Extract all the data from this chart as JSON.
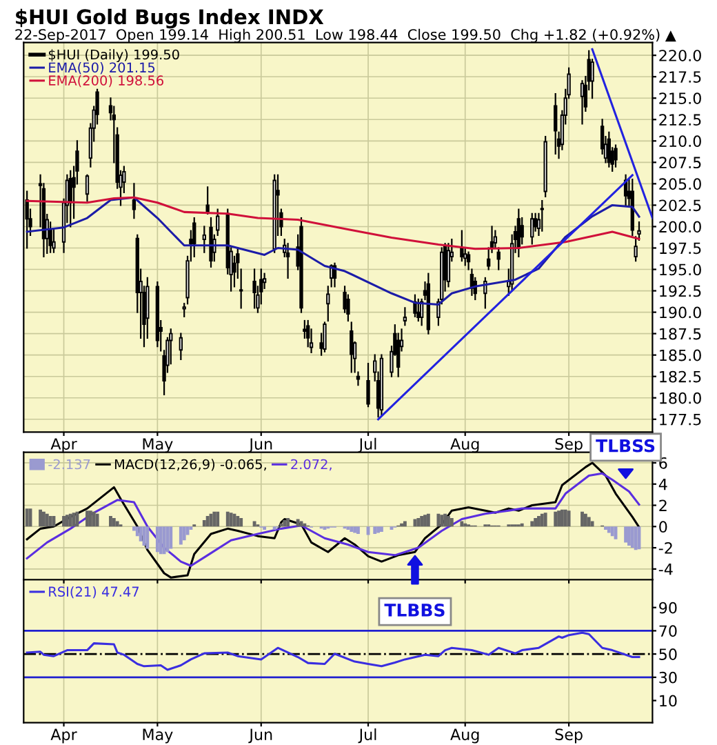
{
  "chart_data": [
    {
      "type": "candlestick",
      "title": "$HUI Gold Bugs Index INDX",
      "subtitle": "22-Sep-2017  Open 199.14  High 200.51  Low 198.44  Close 199.50  Chg +1.82 (+0.92%) ▲",
      "series": [
        {
          "type": "candlestick",
          "name": "$HUI (Daily) 199.50",
          "color": "#000000",
          "x": [
            "2017-03-23",
            "2017-03-24",
            "2017-03-27",
            "2017-03-28",
            "2017-03-29",
            "2017-03-30",
            "2017-03-31",
            "2017-04-03",
            "2017-04-04",
            "2017-04-05",
            "2017-04-06",
            "2017-04-07",
            "2017-04-10",
            "2017-04-11",
            "2017-04-12",
            "2017-04-13",
            "2017-04-17",
            "2017-04-18",
            "2017-04-19",
            "2017-04-20",
            "2017-04-21",
            "2017-04-24",
            "2017-04-25",
            "2017-04-26",
            "2017-04-27",
            "2017-04-28",
            "2017-05-01",
            "2017-05-02",
            "2017-05-03",
            "2017-05-04",
            "2017-05-05",
            "2017-05-08",
            "2017-05-09",
            "2017-05-10",
            "2017-05-11",
            "2017-05-12",
            "2017-05-15",
            "2017-05-16",
            "2017-05-17",
            "2017-05-18",
            "2017-05-19",
            "2017-05-22",
            "2017-05-23",
            "2017-05-24",
            "2017-05-25",
            "2017-05-26",
            "2017-05-30",
            "2017-05-31",
            "2017-06-01",
            "2017-06-02",
            "2017-06-05",
            "2017-06-06",
            "2017-06-07",
            "2017-06-08",
            "2017-06-09",
            "2017-06-12",
            "2017-06-13",
            "2017-06-14",
            "2017-06-15",
            "2017-06-16",
            "2017-06-19",
            "2017-06-20",
            "2017-06-21",
            "2017-06-22",
            "2017-06-23",
            "2017-06-26",
            "2017-06-27",
            "2017-06-28",
            "2017-06-29",
            "2017-06-30",
            "2017-07-03",
            "2017-07-05",
            "2017-07-06",
            "2017-07-07",
            "2017-07-10",
            "2017-07-11",
            "2017-07-12",
            "2017-07-13",
            "2017-07-14",
            "2017-07-17",
            "2017-07-18",
            "2017-07-19",
            "2017-07-20",
            "2017-07-21",
            "2017-07-24",
            "2017-07-25",
            "2017-07-26",
            "2017-07-27",
            "2017-07-28",
            "2017-07-31",
            "2017-08-01",
            "2017-08-02",
            "2017-08-03",
            "2017-08-04",
            "2017-08-07",
            "2017-08-08",
            "2017-08-09",
            "2017-08-10",
            "2017-08-11",
            "2017-08-14",
            "2017-08-15",
            "2017-08-16",
            "2017-08-17",
            "2017-08-18",
            "2017-08-21",
            "2017-08-22",
            "2017-08-23",
            "2017-08-24",
            "2017-08-25",
            "2017-08-28",
            "2017-08-29",
            "2017-08-30",
            "2017-08-31",
            "2017-09-01",
            "2017-09-05",
            "2017-09-06",
            "2017-09-07",
            "2017-09-08",
            "2017-09-11",
            "2017-09-12",
            "2017-09-13",
            "2017-09-14",
            "2017-09-15",
            "2017-09-18",
            "2017-09-19",
            "2017-09-20",
            "2017-09-21",
            "2017-09-22"
          ],
          "ohlc": [
            [
              203.1,
              204.1,
              197.5,
              200.9
            ],
            [
              200.9,
              202,
              199,
              200
            ],
            [
              205,
              206,
              200,
              204.8
            ],
            [
              204.4,
              205,
              196.5,
              198.6
            ],
            [
              198.6,
              201.4,
              196.9,
              200.8
            ],
            [
              199.6,
              200.5,
              197,
              197.8
            ],
            [
              197.5,
              199.6,
              197,
              198.2
            ],
            [
              198.2,
              203.2,
              197,
              202.8
            ],
            [
              202.5,
              206,
              200.5,
              205.4
            ],
            [
              205.6,
              206.5,
              200,
              202.8
            ],
            [
              205.7,
              207,
              201,
              204.6
            ],
            [
              208.8,
              210,
              205,
              206.5
            ],
            [
              203.8,
              206,
              203,
              205.9
            ],
            [
              208,
              212,
              207,
              211.5
            ],
            [
              211.5,
              214,
              210,
              213.6
            ],
            [
              215.7,
              216,
              212,
              213.1
            ],
            [
              214.1,
              215,
              212.5,
              213.3
            ],
            [
              213,
              214,
              207.5,
              212.5
            ],
            [
              210.7,
              211.5,
              204.5,
              205.2
            ],
            [
              204.6,
              206.5,
              202.5,
              206
            ],
            [
              205.2,
              207,
              204,
              206.4
            ],
            [
              203.1,
              205,
              201,
              202
            ],
            [
              198.6,
              199,
              190,
              192.3
            ],
            [
              192.3,
              195,
              187,
              193.6
            ],
            [
              192.3,
              193,
              186,
              188.6
            ],
            [
              189.3,
              194,
              187,
              193
            ],
            [
              193,
              193.5,
              186,
              186.7
            ],
            [
              188.2,
              189,
              185.5,
              187.8
            ],
            [
              184.9,
              185.5,
              180.4,
              182
            ],
            [
              183.8,
              187,
              183,
              186.7
            ],
            [
              186.7,
              188,
              184,
              187.5
            ],
            [
              185.6,
              187.5,
              184.5,
              187
            ],
            [
              190.4,
              191,
              189.5,
              190.6
            ],
            [
              191.7,
              196.5,
              191,
              196
            ],
            [
              198.5,
              199.5,
              196,
              198
            ],
            [
              200.4,
              201,
              196.5,
              198
            ],
            [
              198.5,
              200,
              197,
              199
            ],
            [
              202.5,
              204.6,
              201.5,
              201.7
            ],
            [
              199.9,
              201,
              195.3,
              196
            ],
            [
              197,
              199,
              196,
              198.5
            ],
            [
              199.6,
              202,
              199,
              201.2
            ],
            [
              201.5,
              202,
              194.5,
              195.2
            ],
            [
              194.4,
              197.5,
              192.5,
              197.1
            ],
            [
              195.7,
              196.5,
              193,
              194.7
            ],
            [
              196.8,
              197.5,
              194,
              195.8
            ],
            [
              192.5,
              195,
              190.5,
              192.6
            ],
            [
              193.6,
              195,
              190.5,
              192.3
            ],
            [
              190.5,
              193,
              190,
              192
            ],
            [
              193.8,
              195,
              191,
              192.4
            ],
            [
              193.5,
              194.5,
              192.8,
              193.9
            ],
            [
              197.4,
              206,
              197,
              205.4
            ],
            [
              204.2,
              206,
              199,
              203.7
            ],
            [
              201.6,
              202,
              199,
              200
            ],
            [
              197,
              198.5,
              196.5,
              197.8
            ],
            [
              196.9,
              198,
              194,
              196.5
            ],
            [
              197.6,
              199,
              195,
              195.4
            ],
            [
              200,
              201,
              190,
              190.5
            ],
            [
              188,
              189,
              187,
              187.8
            ],
            [
              188.4,
              189,
              186,
              187
            ],
            [
              185.9,
              188,
              185.3,
              186.4
            ],
            [
              186.4,
              187.5,
              185,
              185.8
            ],
            [
              185.7,
              188.8,
              185.4,
              188.6
            ],
            [
              191,
              193,
              189,
              192.1
            ],
            [
              194,
              195.5,
              193,
              195.4
            ],
            [
              195.4,
              195.7,
              193,
              194
            ],
            [
              192.3,
              193,
              190,
              190.4
            ],
            [
              191.5,
              192,
              189,
              189.8
            ],
            [
              187.8,
              188.8,
              183,
              185.1
            ],
            [
              184.6,
              186.5,
              183,
              186.4
            ],
            [
              182.5,
              183,
              181.5,
              182.2
            ],
            [
              182,
              184,
              179,
              179.3
            ],
            [
              183,
              185,
              182,
              184.3
            ],
            [
              182,
              183,
              177.8,
              178.8
            ],
            [
              178.6,
              185,
              178,
              184.6
            ],
            [
              183,
              186,
              182.5,
              185.4
            ],
            [
              187.5,
              188.5,
              185,
              185.1
            ],
            [
              186.7,
              187.5,
              182.5,
              183.6
            ],
            [
              186,
              188,
              185.5,
              186.7
            ],
            [
              189,
              190.5,
              188.5,
              189.4
            ],
            [
              191.2,
              192,
              189.5,
              189.9
            ],
            [
              190,
              191.5,
              189,
              189.4
            ],
            [
              189.4,
              191.5,
              188.5,
              191.2
            ],
            [
              192.5,
              193.5,
              191.5,
              192
            ],
            [
              193.3,
              194.5,
              187.5,
              188
            ],
            [
              189.4,
              191.5,
              188.5,
              191.2
            ],
            [
              191.5,
              197.5,
              191,
              197
            ],
            [
              197.8,
              198,
              192.5,
              193.8
            ],
            [
              193.6,
              198,
              193,
              197.2
            ],
            [
              196.5,
              198.5,
              196,
              197
            ],
            [
              197.5,
              199.5,
              196,
              196.5
            ],
            [
              196.3,
              197.5,
              195.5,
              196.8
            ],
            [
              196.7,
              197,
              195,
              195.9
            ],
            [
              194.4,
              195,
              192,
              192.8
            ],
            [
              193.6,
              194,
              191.5,
              192.2
            ],
            [
              192.2,
              194,
              190.5,
              193.6
            ],
            [
              196.2,
              197.5,
              195,
              195.4
            ],
            [
              198.2,
              200,
              197,
              197.5
            ],
            [
              198.1,
              199.5,
              197.5,
              198.8
            ],
            [
              197,
              197.5,
              195,
              196.2
            ],
            [
              193,
              195,
              192,
              193.6
            ],
            [
              193.3,
              199,
              192.5,
              198
            ],
            [
              199.4,
              200,
              197,
              198.5
            ],
            [
              200.9,
              202,
              196.5,
              197.5
            ],
            [
              200.1,
              201,
              198,
              198.8
            ],
            [
              198.8,
              201.5,
              198,
              200.9
            ],
            [
              200.9,
              201.5,
              199.5,
              200
            ],
            [
              199.8,
              201.5,
              199,
              200.8
            ],
            [
              202,
              203,
              199.5,
              202.1
            ],
            [
              204.1,
              210.5,
              203.5,
              209.9
            ],
            [
              214.1,
              215.5,
              208.5,
              211.2
            ],
            [
              210.2,
              211,
              208,
              209.4
            ],
            [
              209.6,
              213.5,
              209,
              213
            ],
            [
              213,
              216,
              212,
              215
            ],
            [
              215.4,
              218.5,
              215,
              217.8
            ],
            [
              215.2,
              217,
              212,
              216.7
            ],
            [
              216.5,
              217.5,
              213.5,
              214
            ],
            [
              219.5,
              220.5,
              216,
              217
            ],
            [
              217,
              219.5,
              215,
              219.2
            ],
            [
              211.7,
              212.5,
              208.5,
              209.1
            ],
            [
              208,
              210.5,
              207.5,
              209.6
            ],
            [
              210.2,
              211,
              207,
              207.5
            ],
            [
              208.8,
              209.2,
              206.5,
              207.3
            ],
            [
              209.1,
              209.5,
              207,
              207.8
            ],
            [
              205.4,
              206,
              202.5,
              203.6
            ],
            [
              204.1,
              205.5,
              202.5,
              203.3
            ],
            [
              204.1,
              205.5,
              199,
              199.6
            ],
            [
              196.5,
              198.8,
              196,
              197.68
            ],
            [
              199.14,
              200.51,
              198.44,
              199.5
            ]
          ]
        },
        {
          "type": "line",
          "name": "EMA(50) 201.15",
          "color": "#1c1ca8",
          "x": [
            "2017-03-23",
            "2017-04-03",
            "2017-04-10",
            "2017-04-17",
            "2017-04-24",
            "2017-05-01",
            "2017-05-09",
            "2017-05-22",
            "2017-06-02",
            "2017-06-06",
            "2017-06-12",
            "2017-06-20",
            "2017-06-26",
            "2017-07-10",
            "2017-07-17",
            "2017-07-24",
            "2017-07-28",
            "2017-08-04",
            "2017-08-16",
            "2017-08-23",
            "2017-08-31",
            "2017-09-08",
            "2017-09-14",
            "2017-09-20",
            "2017-09-22"
          ],
          "values": [
            199.4,
            199.9,
            201,
            203.1,
            203.4,
            201,
            197.8,
            197.8,
            196.7,
            197.5,
            197.3,
            195.4,
            194.8,
            192.2,
            191.1,
            190.9,
            192.2,
            193,
            193.8,
            195.1,
            198.8,
            201.2,
            202.5,
            202.3,
            201.15
          ]
        },
        {
          "type": "line",
          "name": "EMA(200) 198.56",
          "color": "#d0103a",
          "x": [
            "2017-03-23",
            "2017-04-10",
            "2017-04-18",
            "2017-04-24",
            "2017-05-01",
            "2017-05-09",
            "2017-05-22",
            "2017-05-31",
            "2017-06-12",
            "2017-06-28",
            "2017-07-10",
            "2017-07-24",
            "2017-08-04",
            "2017-08-17",
            "2017-08-31",
            "2017-09-14",
            "2017-09-22"
          ],
          "values": [
            203,
            202.8,
            203.3,
            203.4,
            202.8,
            201.7,
            201.5,
            201,
            200.8,
            199.6,
            198.7,
            197.9,
            197.4,
            197.5,
            198.2,
            199.4,
            198.56
          ]
        },
        {
          "type": "line",
          "color": "#2222e0",
          "x": [
            "2017-07-06",
            "2017-09-20"
          ],
          "values": [
            177.5,
            206
          ]
        },
        {
          "type": "line",
          "color": "#2222e0",
          "x": [
            "2017-09-08",
            "2017-09-26"
          ],
          "values": [
            220.7,
            201
          ]
        }
      ],
      "xlim": [
        "2017-03-22",
        "2017-09-26"
      ],
      "ylim": [
        176,
        221.5
      ],
      "yticks": [
        177.5,
        {
          "value": 180,
          "label": "180.0"
        },
        182.5,
        {
          "value": 185,
          "label": "185.0"
        },
        187.5,
        {
          "value": 190,
          "label": "190.0"
        },
        192.5,
        {
          "value": 195,
          "label": "195.0"
        },
        197.5,
        {
          "value": 200,
          "label": "200.0"
        },
        202.5,
        {
          "value": 205,
          "label": "205.0"
        },
        207.5,
        {
          "value": 210,
          "label": "210.0"
        },
        212.5,
        {
          "value": 215,
          "label": "215.0"
        },
        217.5,
        {
          "value": 220,
          "label": "220.0"
        }
      ],
      "xticks": [
        {
          "value": "2017-04-03",
          "label": "Apr"
        },
        {
          "value": "2017-05-01",
          "label": "May"
        },
        {
          "value": "2017-06-01",
          "label": "Jun"
        },
        {
          "value": "2017-07-03",
          "label": "Jul"
        },
        {
          "value": "2017-08-01",
          "label": "Aug"
        },
        {
          "value": "2017-09-01",
          "label": "Sep"
        }
      ],
      "grid": true,
      "legend": "top left"
    },
    {
      "type": "line",
      "tick_labels": "y",
      "series": [
        {
          "type": "bar",
          "name": "-2.137",
          "x": [
            "2017-03-23",
            "2017-03-24",
            "2017-03-27",
            "2017-03-28",
            "2017-03-29",
            "2017-03-30",
            "2017-03-31",
            "2017-04-03",
            "2017-04-04",
            "2017-04-05",
            "2017-04-06",
            "2017-04-07",
            "2017-04-10",
            "2017-04-11",
            "2017-04-12",
            "2017-04-13",
            "2017-04-17",
            "2017-04-18",
            "2017-04-19",
            "2017-04-20",
            "2017-04-21",
            "2017-04-24",
            "2017-04-25",
            "2017-04-26",
            "2017-04-27",
            "2017-04-28",
            "2017-05-01",
            "2017-05-02",
            "2017-05-03",
            "2017-05-04",
            "2017-05-05",
            "2017-05-08",
            "2017-05-09",
            "2017-05-10",
            "2017-05-11",
            "2017-05-12",
            "2017-05-15",
            "2017-05-16",
            "2017-05-17",
            "2017-05-18",
            "2017-05-19",
            "2017-05-22",
            "2017-05-23",
            "2017-05-24",
            "2017-05-25",
            "2017-05-26",
            "2017-05-30",
            "2017-05-31",
            "2017-06-01",
            "2017-06-02",
            "2017-06-05",
            "2017-06-06",
            "2017-06-07",
            "2017-06-08",
            "2017-06-09",
            "2017-06-12",
            "2017-06-13",
            "2017-06-14",
            "2017-06-15",
            "2017-06-16",
            "2017-06-19",
            "2017-06-20",
            "2017-06-21",
            "2017-06-22",
            "2017-06-23",
            "2017-06-26",
            "2017-06-27",
            "2017-06-28",
            "2017-06-29",
            "2017-06-30",
            "2017-07-03",
            "2017-07-05",
            "2017-07-06",
            "2017-07-07",
            "2017-07-10",
            "2017-07-11",
            "2017-07-12",
            "2017-07-13",
            "2017-07-14",
            "2017-07-17",
            "2017-07-18",
            "2017-07-19",
            "2017-07-20",
            "2017-07-21",
            "2017-07-24",
            "2017-07-25",
            "2017-07-26",
            "2017-07-27",
            "2017-07-28",
            "2017-07-31",
            "2017-08-01",
            "2017-08-02",
            "2017-08-03",
            "2017-08-04",
            "2017-08-07",
            "2017-08-08",
            "2017-08-09",
            "2017-08-10",
            "2017-08-11",
            "2017-08-14",
            "2017-08-15",
            "2017-08-16",
            "2017-08-17",
            "2017-08-18",
            "2017-08-21",
            "2017-08-22",
            "2017-08-23",
            "2017-08-24",
            "2017-08-25",
            "2017-08-28",
            "2017-08-29",
            "2017-08-30",
            "2017-08-31",
            "2017-09-01",
            "2017-09-05",
            "2017-09-06",
            "2017-09-07",
            "2017-09-08",
            "2017-09-11",
            "2017-09-12",
            "2017-09-13",
            "2017-09-14",
            "2017-09-15",
            "2017-09-18",
            "2017-09-19",
            "2017-09-20",
            "2017-09-21",
            "2017-09-22"
          ],
          "values": [
            1.7,
            1.7,
            1.6,
            1.4,
            1.2,
            1.0,
            1.0,
            1.0,
            1.1,
            1.2,
            1.3,
            1.4,
            1.5,
            1.5,
            1.4,
            1.2,
            1.0,
            0.8,
            0.5,
            0.2,
            0.0,
            -0.4,
            -0.9,
            -1.4,
            -1.8,
            -2.1,
            -2.4,
            -2.6,
            -2.6,
            -2.4,
            -2.1,
            -1.7,
            -1.3,
            -0.8,
            -0.3,
            0.2,
            0.6,
            1.0,
            1.2,
            1.4,
            1.4,
            1.4,
            1.3,
            1.2,
            1.0,
            0.8,
            0.5,
            0.2,
            -0.1,
            -0.3,
            -0.3,
            -0.1,
            0.3,
            0.6,
            0.8,
            0.7,
            0.5,
            0.3,
            0.1,
            -0.1,
            -0.2,
            -0.3,
            -0.2,
            -0.1,
            -0.1,
            -0.2,
            -0.3,
            -0.5,
            -0.6,
            -0.7,
            -0.8,
            -0.7,
            -0.6,
            -0.5,
            -0.3,
            -0.1,
            0.1,
            0.3,
            0.5,
            0.7,
            0.8,
            1.0,
            1.1,
            1.2,
            1.2,
            1.1,
            1.2,
            1.0,
            0.8,
            0.5,
            0.3,
            0.2,
            0.1,
            0.1,
            0.2,
            0.2,
            0.1,
            0.1,
            0.1,
            0.2,
            0.2,
            0.2,
            0.2,
            0.3,
            0.5,
            0.8,
            1.0,
            1.2,
            1.3,
            1.4,
            1.5,
            1.6,
            1.6,
            1.5,
            1.4,
            1.2,
            0.9,
            0.5,
            0.1,
            -0.3,
            -0.6,
            -0.9,
            -1.2,
            -1.5,
            -1.8,
            -2.0,
            -2.2,
            -2.137
          ],
          "colors": [
            "#666666",
            "#666666",
            "#666666",
            "#666666",
            "#666666",
            "#666666",
            "#666666",
            "#666666",
            "#666666",
            "#666666",
            "#666666",
            "#666666",
            "#666666",
            "#666666",
            "#666666",
            "#666666",
            "#666666",
            "#666666",
            "#666666",
            "#666666",
            "#666666",
            "#9a9ad0",
            "#9a9ad0",
            "#9a9ad0",
            "#9a9ad0",
            "#9a9ad0",
            "#9a9ad0",
            "#9a9ad0",
            "#9a9ad0",
            "#9a9ad0",
            "#9a9ad0",
            "#9a9ad0",
            "#9a9ad0",
            "#9a9ad0",
            "#9a9ad0",
            "#666666",
            "#666666",
            "#666666",
            "#666666",
            "#666666",
            "#666666",
            "#666666",
            "#666666",
            "#666666",
            "#666666",
            "#666666",
            "#666666",
            "#666666",
            "#9a9ad0",
            "#9a9ad0",
            "#9a9ad0",
            "#9a9ad0",
            "#666666",
            "#666666",
            "#666666",
            "#666666",
            "#666666",
            "#666666",
            "#666666",
            "#9a9ad0",
            "#9a9ad0",
            "#9a9ad0",
            "#9a9ad0",
            "#9a9ad0",
            "#9a9ad0",
            "#9a9ad0",
            "#9a9ad0",
            "#9a9ad0",
            "#9a9ad0",
            "#9a9ad0",
            "#9a9ad0",
            "#9a9ad0",
            "#9a9ad0",
            "#9a9ad0",
            "#9a9ad0",
            "#9a9ad0",
            "#666666",
            "#666666",
            "#666666",
            "#666666",
            "#666666",
            "#666666",
            "#666666",
            "#666666",
            "#666666",
            "#666666",
            "#666666",
            "#666666",
            "#666666",
            "#666666",
            "#666666",
            "#666666",
            "#666666",
            "#666666",
            "#666666",
            "#666666",
            "#666666",
            "#666666",
            "#666666",
            "#666666",
            "#666666",
            "#666666",
            "#666666",
            "#666666",
            "#666666",
            "#666666",
            "#666666",
            "#666666",
            "#666666",
            "#666666",
            "#666666",
            "#666666",
            "#666666",
            "#666666",
            "#666666",
            "#666666",
            "#666666",
            "#666666",
            "#666666",
            "#9a9ad0",
            "#9a9ad0",
            "#9a9ad0",
            "#9a9ad0",
            "#9a9ad0",
            "#9a9ad0",
            "#9a9ad0",
            "#9a9ad0",
            "#9a9ad0"
          ]
        },
        {
          "type": "line",
          "name": "MACD(12,26,9) -0.065,",
          "color": "#000000",
          "x": [
            "2017-03-23",
            "2017-03-27",
            "2017-03-31",
            "2017-04-05",
            "2017-04-10",
            "2017-04-18",
            "2017-04-20",
            "2017-04-25",
            "2017-04-28",
            "2017-05-03",
            "2017-05-05",
            "2017-05-10",
            "2017-05-12",
            "2017-05-17",
            "2017-05-22",
            "2017-05-25",
            "2017-05-31",
            "2017-06-05",
            "2017-06-07",
            "2017-06-08",
            "2017-06-13",
            "2017-06-16",
            "2017-06-21",
            "2017-06-26",
            "2017-06-29",
            "2017-07-03",
            "2017-07-07",
            "2017-07-12",
            "2017-07-17",
            "2017-07-20",
            "2017-07-25",
            "2017-07-28",
            "2017-08-02",
            "2017-08-07",
            "2017-08-10",
            "2017-08-14",
            "2017-08-17",
            "2017-08-21",
            "2017-08-28",
            "2017-08-30",
            "2017-09-06",
            "2017-09-08",
            "2017-09-12",
            "2017-09-15",
            "2017-09-20",
            "2017-09-22"
          ],
          "values": [
            -1.2,
            -0.2,
            0,
            0.9,
            1.7,
            3.7,
            2.6,
            0,
            -2.2,
            -4.4,
            -4.8,
            -4.6,
            -2.6,
            -0.7,
            -0.2,
            -0.4,
            -0.9,
            -1.1,
            0.4,
            0.7,
            0.2,
            -1.5,
            -2.4,
            -1.1,
            -1.7,
            -2.8,
            -3.3,
            -2.7,
            -2.4,
            -1.1,
            0.2,
            1.5,
            1.8,
            1.5,
            1.3,
            1.7,
            1.5,
            2.0,
            2.3,
            3.9,
            5.6,
            6.0,
            4.8,
            3.1,
            0.9,
            -0.065
          ]
        },
        {
          "type": "line",
          "name": "2.072,",
          "color": "#5a2ee0",
          "x": [
            "2017-03-23",
            "2017-03-29",
            "2017-04-05",
            "2017-04-12",
            "2017-04-19",
            "2017-04-24",
            "2017-04-28",
            "2017-05-03",
            "2017-05-08",
            "2017-05-11",
            "2017-05-16",
            "2017-05-23",
            "2017-05-31",
            "2017-06-07",
            "2017-06-13",
            "2017-06-20",
            "2017-06-27",
            "2017-07-03",
            "2017-07-11",
            "2017-07-18",
            "2017-07-25",
            "2017-07-31",
            "2017-08-07",
            "2017-08-14",
            "2017-08-18",
            "2017-08-28",
            "2017-08-31",
            "2017-09-07",
            "2017-09-11",
            "2017-09-14",
            "2017-09-19",
            "2017-09-22"
          ],
          "values": [
            -3.0,
            -1.5,
            -0.2,
            1.3,
            2.5,
            2.3,
            0,
            -2,
            -3.3,
            -3.7,
            -2.7,
            -1.3,
            -0.7,
            -0.2,
            0.1,
            -1.1,
            -1.7,
            -2.4,
            -2.7,
            -2,
            -0.4,
            0.7,
            1.2,
            1.5,
            1.7,
            1.7,
            3.1,
            4.8,
            5.0,
            4.4,
            3.3,
            2.072
          ]
        }
      ],
      "xlim": [
        "2017-03-22",
        "2017-09-26"
      ],
      "ylim": [
        -5,
        7
      ],
      "yticks": [
        -4,
        -2,
        0,
        2,
        4,
        6
      ],
      "xticks": [
        {
          "value": "2017-04-03",
          "label": null
        },
        {
          "value": "2017-05-01",
          "label": null
        },
        {
          "value": "2017-06-01",
          "label": null
        },
        {
          "value": "2017-07-03",
          "label": null
        },
        {
          "value": "2017-08-01",
          "label": null
        },
        {
          "value": "2017-09-01",
          "label": null
        }
      ],
      "grid": true,
      "legend": "top left",
      "annotations": [
        {
          "text": "TLBBS",
          "x": "2017-07-17",
          "y": -2.6
        },
        {
          "text": "TLBSS",
          "x": "2017-09-18",
          "y": 4.4
        }
      ]
    },
    {
      "type": "line",
      "series": [
        {
          "name": "RSI(21) 47.47",
          "color": "#3a2ee0",
          "x": [
            "2017-03-23",
            "2017-03-27",
            "2017-03-28",
            "2017-03-31",
            "2017-04-04",
            "2017-04-10",
            "2017-04-12",
            "2017-04-18",
            "2017-04-19",
            "2017-04-21",
            "2017-04-25",
            "2017-04-27",
            "2017-05-02",
            "2017-05-04",
            "2017-05-08",
            "2017-05-11",
            "2017-05-15",
            "2017-05-22",
            "2017-05-25",
            "2017-06-01",
            "2017-06-06",
            "2017-06-12",
            "2017-06-15",
            "2017-06-20",
            "2017-06-23",
            "2017-06-29",
            "2017-07-03",
            "2017-07-07",
            "2017-07-11",
            "2017-07-14",
            "2017-07-20",
            "2017-07-24",
            "2017-07-26",
            "2017-07-28",
            "2017-08-03",
            "2017-08-08",
            "2017-08-11",
            "2017-08-16",
            "2017-08-18",
            "2017-08-23",
            "2017-08-29",
            "2017-08-30",
            "2017-09-01",
            "2017-09-05",
            "2017-09-07",
            "2017-09-11",
            "2017-09-14",
            "2017-09-20",
            "2017-09-22"
          ],
          "values": [
            51.3,
            52,
            49.4,
            48.2,
            53.3,
            53.3,
            59.2,
            58.4,
            51.3,
            49.4,
            41.5,
            39.5,
            40.3,
            36.4,
            40.3,
            45.4,
            50.6,
            51.3,
            48.2,
            45.4,
            55.3,
            47.4,
            42.3,
            41.5,
            50.2,
            43.5,
            41.5,
            39.5,
            42.7,
            45.4,
            49.4,
            48.2,
            53.3,
            55.3,
            53.3,
            49.4,
            55.3,
            50.6,
            53.3,
            55.3,
            65.1,
            64,
            66.3,
            68.3,
            67.1,
            55.3,
            53.3,
            47.4,
            47.47
          ]
        }
      ],
      "ref_lines": [
        {
          "axis": "y",
          "value": 70,
          "color": "#2020d0"
        },
        {
          "axis": "y",
          "value": 30,
          "color": "#2020d0"
        },
        {
          "axis": "y",
          "value": 50,
          "color": "#000000",
          "line_style": "dashed"
        }
      ],
      "xlim": [
        "2017-03-22",
        "2017-09-26"
      ],
      "ylim": [
        -9,
        114
      ],
      "yticks": [
        10,
        30,
        50,
        70,
        90
      ],
      "xticks": [
        {
          "value": "2017-04-03",
          "label": "Apr"
        },
        {
          "value": "2017-05-01",
          "label": "May"
        },
        {
          "value": "2017-06-01",
          "label": "Jun"
        },
        {
          "value": "2017-07-03",
          "label": "Jul"
        },
        {
          "value": "2017-08-01",
          "label": "Aug"
        },
        {
          "value": "2017-09-01",
          "label": "Sep"
        }
      ],
      "grid": "x",
      "legend": "top left"
    }
  ]
}
